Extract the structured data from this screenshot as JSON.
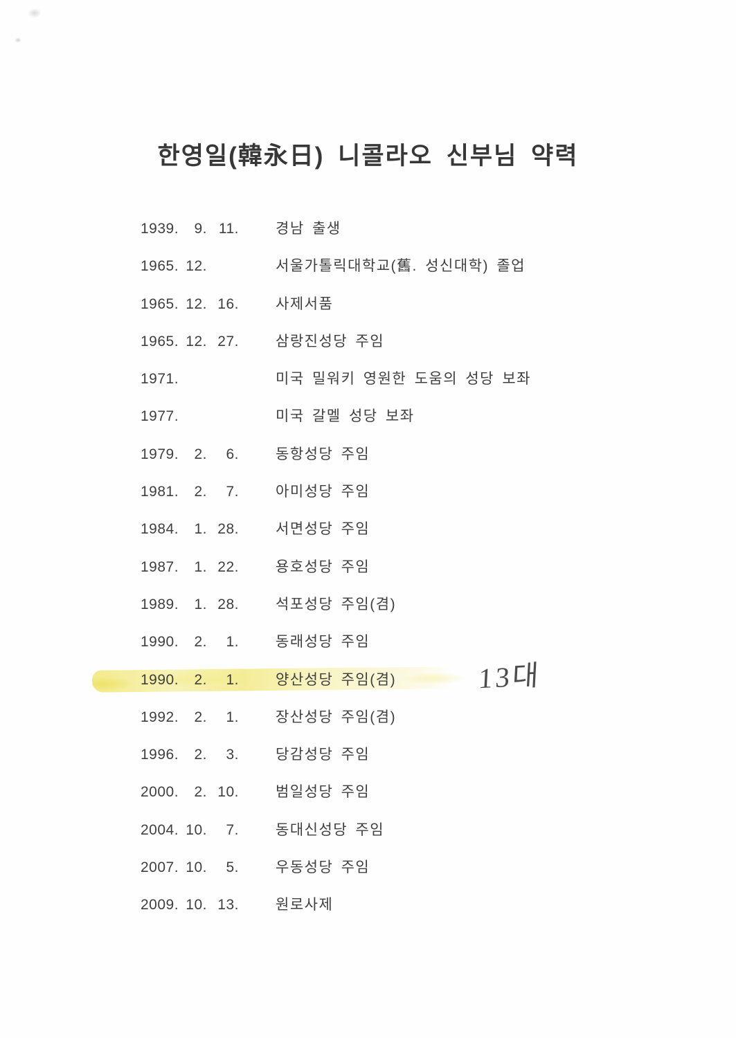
{
  "page": {
    "title": "한영일(韓永日) 니콜라오 신부님 약력"
  },
  "timeline": {
    "rows": [
      {
        "year": "1939.",
        "month": "9.",
        "day": "11.",
        "event": "경남 출생"
      },
      {
        "year": "1965.",
        "month": "12.",
        "day": "",
        "event": "서울가톨릭대학교(舊. 성신대학) 졸업"
      },
      {
        "year": "1965.",
        "month": "12.",
        "day": "16.",
        "event": "사제서품"
      },
      {
        "year": "1965.",
        "month": "12.",
        "day": "27.",
        "event": "삼랑진성당 주임"
      },
      {
        "year": "1971.",
        "month": "",
        "day": "",
        "event": "미국 밀워키 영원한 도움의 성당 보좌"
      },
      {
        "year": "1977.",
        "month": "",
        "day": "",
        "event": "미국 갈멜 성당 보좌"
      },
      {
        "year": "1979.",
        "month": "2.",
        "day": "6.",
        "event": "동항성당 주임"
      },
      {
        "year": "1981.",
        "month": "2.",
        "day": "7.",
        "event": "아미성당 주임"
      },
      {
        "year": "1984.",
        "month": "1.",
        "day": "28.",
        "event": "서면성당 주임"
      },
      {
        "year": "1987.",
        "month": "1.",
        "day": "22.",
        "event": "용호성당 주임"
      },
      {
        "year": "1989.",
        "month": "1.",
        "day": "28.",
        "event": "석포성당 주임(겸)"
      },
      {
        "year": "1990.",
        "month": "2.",
        "day": "1.",
        "event": "동래성당 주임"
      },
      {
        "year": "1990.",
        "month": "2.",
        "day": "1.",
        "event": "양산성당 주임(겸)",
        "highlight": true,
        "annotation": "13대"
      },
      {
        "year": "1992.",
        "month": "2.",
        "day": "1.",
        "event": "장산성당 주임(겸)"
      },
      {
        "year": "1996.",
        "month": "2.",
        "day": "3.",
        "event": "당감성당 주임"
      },
      {
        "year": "2000.",
        "month": "2.",
        "day": "10.",
        "event": "범일성당 주임"
      },
      {
        "year": "2004.",
        "month": "10.",
        "day": "7.",
        "event": "동대신성당 주임"
      },
      {
        "year": "2007.",
        "month": "10.",
        "day": "5.",
        "event": "우동성당 주임"
      },
      {
        "year": "2009.",
        "month": "10.",
        "day": "13.",
        "event": "원로사제"
      }
    ]
  },
  "annotations": {
    "handwritten_note": "13대",
    "highlight_color": "#f2e878"
  }
}
